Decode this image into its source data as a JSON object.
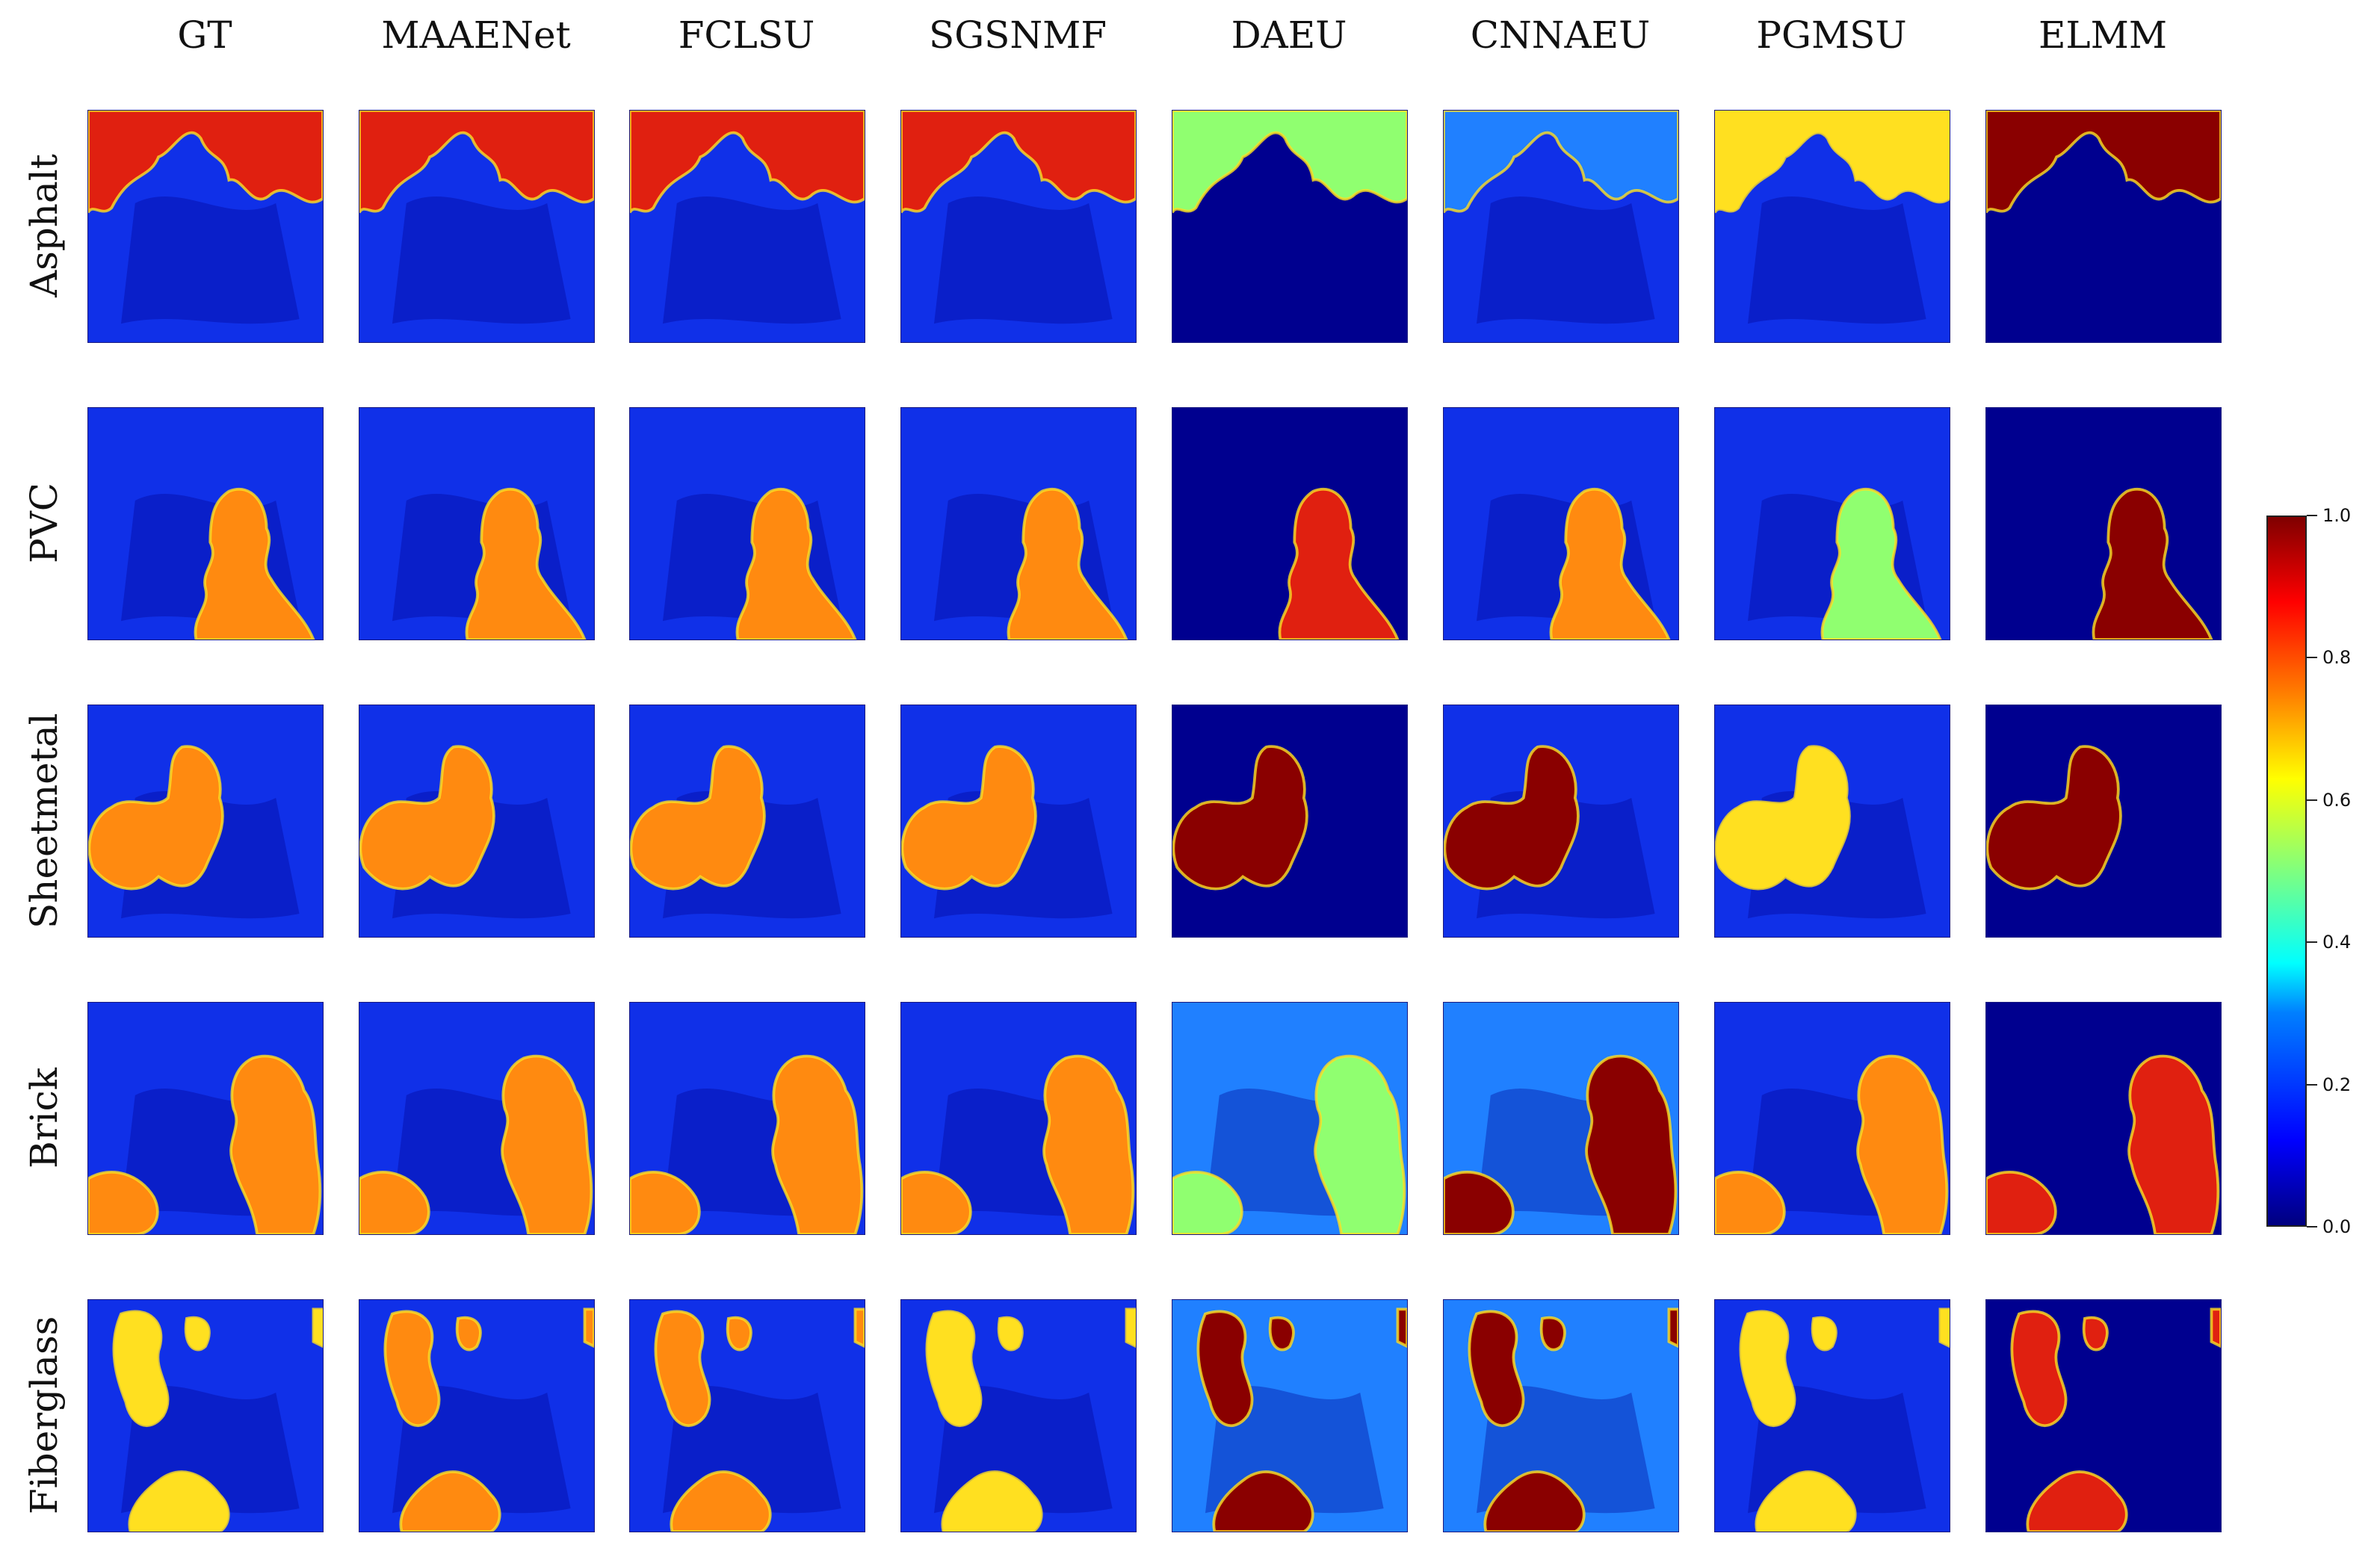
{
  "figure": {
    "methods": [
      "GT",
      "MAAENet",
      "FCLSU",
      "SGSNMF",
      "DAEU",
      "CNNAEU",
      "PGMSU",
      "ELMM"
    ],
    "materials": [
      "Asphalt",
      "PVC",
      "Sheetmetal",
      "Brick",
      "Fiberglass"
    ],
    "colorbar": {
      "min": 0.0,
      "max": 1.0,
      "ticks": [
        "0.0",
        "0.2",
        "0.4",
        "0.6",
        "0.8",
        "1.0"
      ],
      "colormap": "jet"
    }
  },
  "palette": {
    "darkblue": "#00008f",
    "blue": "#1030e8",
    "lightblue": "#2080ff",
    "cyan": "#30d0f0",
    "green": "#90ff70",
    "yellow": "#ffe020",
    "orange": "#ff8a10",
    "red": "#e02010",
    "darkred": "#8a0000"
  }
}
